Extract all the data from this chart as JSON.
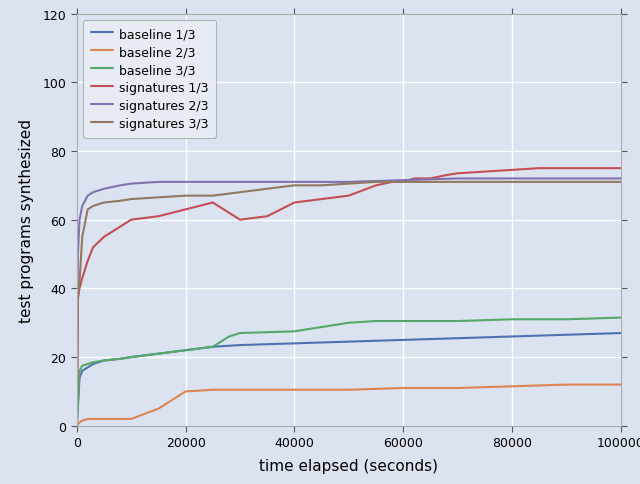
{
  "title": "",
  "xlabel": "time elapsed (seconds)",
  "ylabel": "test programs synthesized",
  "xlim": [
    0,
    100000
  ],
  "ylim": [
    0,
    120
  ],
  "yticks": [
    0,
    20,
    40,
    60,
    80,
    100,
    120
  ],
  "xticks": [
    0,
    20000,
    40000,
    60000,
    80000,
    100000
  ],
  "background_color": "#dce3f0",
  "grid_color": "#ffffff",
  "outer_bg": "#dce3f0",
  "series": [
    {
      "label": "baseline 1/3",
      "color": "#4c72b0",
      "x": [
        0,
        500,
        1000,
        2000,
        3000,
        5000,
        8000,
        10000,
        15000,
        20000,
        25000,
        30000,
        40000,
        50000,
        60000,
        70000,
        80000,
        90000,
        100000
      ],
      "y": [
        0,
        14,
        16,
        17,
        18,
        19,
        19.5,
        20,
        21,
        22,
        23,
        23.5,
        24,
        24.5,
        25,
        25.5,
        26,
        26.5,
        27
      ]
    },
    {
      "label": "baseline 2/3",
      "color": "#dd8452",
      "x": [
        0,
        500,
        1000,
        2000,
        3000,
        5000,
        8000,
        10000,
        15000,
        17000,
        20000,
        25000,
        30000,
        40000,
        50000,
        60000,
        70000,
        80000,
        90000,
        100000
      ],
      "y": [
        0,
        1,
        1.5,
        2,
        2,
        2,
        2,
        2,
        5,
        7,
        10,
        10.5,
        10.5,
        10.5,
        10.5,
        11,
        11,
        11.5,
        12,
        12
      ]
    },
    {
      "label": "baseline 3/3",
      "color": "#55a868",
      "x": [
        0,
        500,
        1000,
        2000,
        3000,
        5000,
        8000,
        10000,
        15000,
        20000,
        25000,
        28000,
        30000,
        40000,
        50000,
        55000,
        60000,
        70000,
        80000,
        90000,
        100000
      ],
      "y": [
        0,
        16,
        17.5,
        18,
        18.5,
        19,
        19.5,
        20,
        21,
        22,
        23,
        26,
        27,
        27.5,
        30,
        30.5,
        30.5,
        30.5,
        31,
        31,
        31.5
      ]
    },
    {
      "label": "signatures 1/3",
      "color": "#c44e52",
      "x": [
        0,
        200,
        500,
        1000,
        2000,
        3000,
        5000,
        8000,
        10000,
        15000,
        20000,
        25000,
        30000,
        35000,
        40000,
        45000,
        50000,
        55000,
        58000,
        60000,
        62000,
        65000,
        68000,
        70000,
        75000,
        80000,
        85000,
        90000,
        95000,
        100000
      ],
      "y": [
        0,
        37,
        40,
        43,
        48,
        52,
        55,
        58,
        60,
        61,
        63,
        65,
        60,
        61,
        65,
        66,
        67,
        70,
        71,
        71,
        72,
        72,
        73,
        73.5,
        74,
        74.5,
        75,
        75,
        75,
        75
      ]
    },
    {
      "label": "signatures 2/3",
      "color": "#8172b2",
      "x": [
        0,
        200,
        500,
        1000,
        2000,
        3000,
        5000,
        8000,
        10000,
        15000,
        20000,
        25000,
        30000,
        40000,
        50000,
        60000,
        70000,
        80000,
        90000,
        100000
      ],
      "y": [
        0,
        50,
        60,
        64,
        67,
        68,
        69,
        70,
        70.5,
        71,
        71,
        71,
        71,
        71,
        71,
        71.5,
        72,
        72,
        72,
        72
      ]
    },
    {
      "label": "signatures 3/3",
      "color": "#937860",
      "x": [
        0,
        200,
        500,
        1000,
        2000,
        3000,
        5000,
        8000,
        10000,
        15000,
        20000,
        25000,
        30000,
        35000,
        40000,
        45000,
        50000,
        55000,
        60000,
        65000,
        70000,
        75000,
        80000,
        90000,
        100000
      ],
      "y": [
        0,
        38,
        42,
        55,
        63,
        64,
        65,
        65.5,
        66,
        66.5,
        67,
        67,
        68,
        69,
        70,
        70,
        70.5,
        71,
        71,
        71,
        71,
        71,
        71,
        71,
        71
      ]
    }
  ],
  "legend_fontsize": 9,
  "tick_fontsize": 9,
  "label_fontsize": 11
}
